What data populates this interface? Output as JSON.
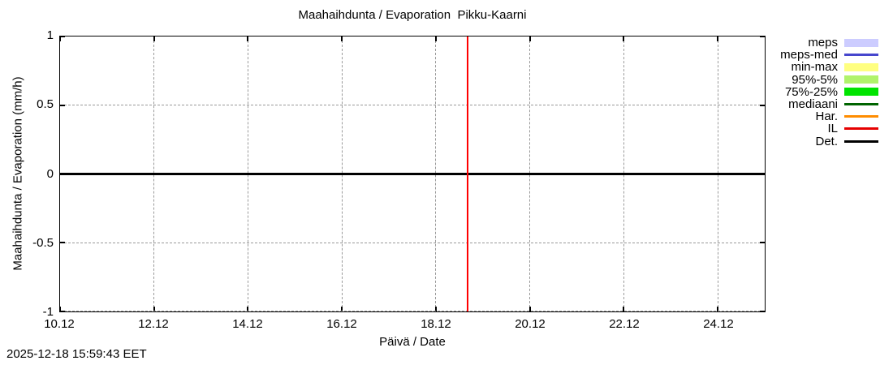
{
  "timestamp": "2025-12-18 15:59:43 EET",
  "chart_data": {
    "type": "line",
    "title": "Maahaihdunta / Evaporation  Pikku-Kaarni",
    "xlabel": "Päivä / Date",
    "ylabel": "Maahaihdunta / Evaporation (mm/h)",
    "x_range_days": 15,
    "x_start_label": "10.12",
    "x_ticks": [
      {
        "label": "10.12",
        "day": 0
      },
      {
        "label": "12.12",
        "day": 2
      },
      {
        "label": "14.12",
        "day": 4
      },
      {
        "label": "16.12",
        "day": 6
      },
      {
        "label": "18.12",
        "day": 8
      },
      {
        "label": "20.12",
        "day": 10
      },
      {
        "label": "22.12",
        "day": 12
      },
      {
        "label": "24.12",
        "day": 14
      }
    ],
    "ylim": [
      -1,
      1
    ],
    "y_ticks": [
      {
        "label": "1",
        "value": 1
      },
      {
        "label": "0.5",
        "value": 0.5
      },
      {
        "label": "0",
        "value": 0
      },
      {
        "label": "-0.5",
        "value": -0.5
      },
      {
        "label": "-1",
        "value": -1
      }
    ],
    "grid": true,
    "grid_color": "#9a9a9a",
    "legend_position": "outside-right",
    "series": [
      {
        "name": "Det.",
        "color": "#000000",
        "line_width": 3,
        "x_days": [
          0,
          15
        ],
        "y": [
          0,
          0
        ]
      }
    ],
    "annotations": [
      {
        "type": "vline",
        "day": 8.67,
        "color": "#ff0000",
        "line_width": 2
      }
    ]
  },
  "legend": {
    "entries": [
      {
        "label": "meps",
        "swatch": "fill",
        "color": "#ccccff"
      },
      {
        "label": "meps-med",
        "swatch": "line",
        "color": "#4646cd"
      },
      {
        "label": "min-max",
        "swatch": "fill",
        "color": "#ffff80"
      },
      {
        "label": "95%-5%",
        "swatch": "fill",
        "color": "#b0f36b"
      },
      {
        "label": "75%-25%",
        "swatch": "fill",
        "color": "#00e400"
      },
      {
        "label": "mediaani",
        "swatch": "line",
        "color": "#006400"
      },
      {
        "label": "Har.",
        "swatch": "line",
        "color": "#ff8c00"
      },
      {
        "label": "IL",
        "swatch": "line",
        "color": "#e60000"
      },
      {
        "label": "Det.",
        "swatch": "line",
        "color": "#000000"
      }
    ]
  }
}
